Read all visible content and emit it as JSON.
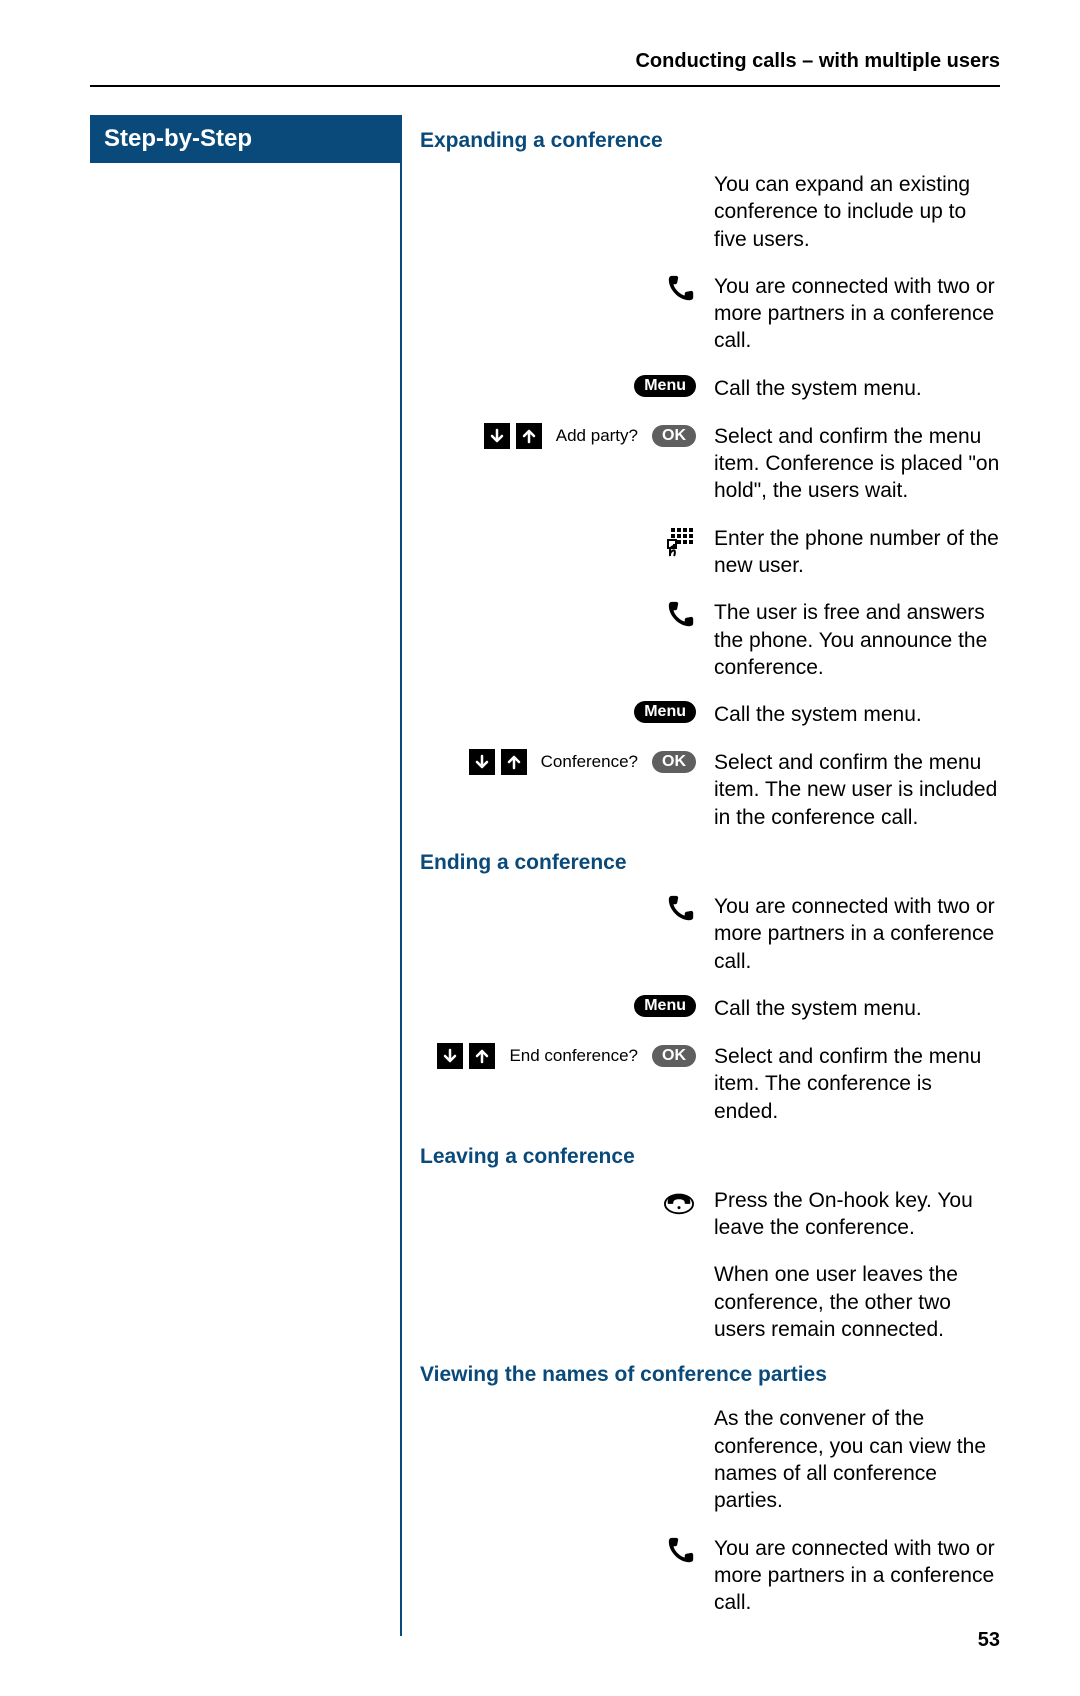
{
  "header": "Conducting calls – with multiple users",
  "sidebar_title": "Step-by-Step",
  "labels": {
    "menu": "Menu",
    "ok": "OK"
  },
  "sections": [
    {
      "heading": "Expanding a conference",
      "rows": [
        {
          "left": null,
          "text": "You can expand an existing conference to include up to five users."
        },
        {
          "left": "handset-off",
          "text": "You are connected with two or more partners in a conference call."
        },
        {
          "left": "menu",
          "text": "Call the system menu."
        },
        {
          "left": "arrows",
          "arrow_text": "Add party?",
          "ok": true,
          "text": "Select and confirm the menu item. Conference is placed \"on hold\", the users wait."
        },
        {
          "left": "keypad",
          "text": "Enter the phone number of the new user."
        },
        {
          "left": "handset-off",
          "text": "The user is free and answers the phone. You announce the conference."
        },
        {
          "left": "menu",
          "text": "Call the system menu."
        },
        {
          "left": "arrows",
          "arrow_text": "Conference?",
          "ok": true,
          "text": "Select and confirm the menu item. The new user is included in the conference call."
        }
      ]
    },
    {
      "heading": "Ending a conference",
      "rows": [
        {
          "left": "handset-off",
          "text": "You are connected with two or more partners in a conference call."
        },
        {
          "left": "menu",
          "text": "Call the system menu."
        },
        {
          "left": "arrows",
          "arrow_text": "End conference?",
          "ok": true,
          "text": "Select and confirm the menu item. The conference is ended."
        }
      ]
    },
    {
      "heading": "Leaving a conference",
      "rows": [
        {
          "left": "handset-on",
          "text": "Press the On-hook key. You leave the conference."
        },
        {
          "left": null,
          "text": "When one user leaves the conference, the other two users remain connected."
        }
      ]
    },
    {
      "heading": "Viewing the names of conference parties",
      "rows": [
        {
          "left": null,
          "text": "As the convener of the conference, you can view the names of all conference parties."
        },
        {
          "left": "handset-off",
          "text": "You are connected with two or more partners in a conference call."
        }
      ]
    }
  ],
  "page_number": "53",
  "colors": {
    "brand": "#0a4a7a",
    "pill_menu": "#000000",
    "pill_ok": "#5f5f5f"
  }
}
